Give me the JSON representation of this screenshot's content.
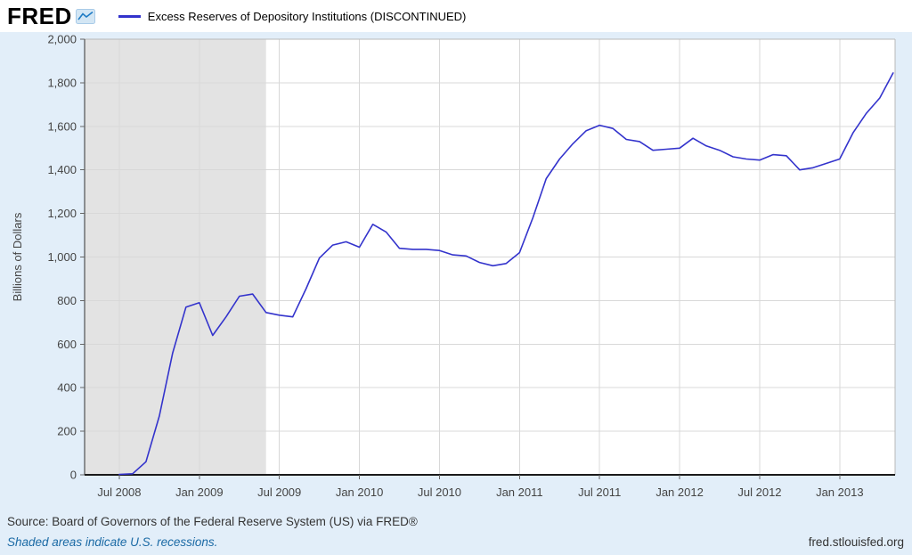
{
  "header": {
    "logo_text": "FRED",
    "series_title": "Excess Reserves of Depository Institutions (DISCONTINUED)"
  },
  "footer": {
    "source": "Source: Board of Governors of the Federal Reserve System (US) via FRED®",
    "recession_note": "Shaded areas indicate U.S. recessions.",
    "site": "fred.stlouisfed.org"
  },
  "colors": {
    "background": "#e2eef9",
    "header_background": "#ffffff",
    "plot_background": "#ffffff",
    "line": "#3333cc",
    "recession_band": "#e3e3e3",
    "gridline": "#d8d8d8",
    "axis_text": "#444444",
    "link": "#1b6aa5"
  },
  "chart_data": {
    "type": "line",
    "title": "Excess Reserves of Depository Institutions (DISCONTINUED)",
    "xlabel": "",
    "ylabel": "Billions of Dollars",
    "ylim": [
      0,
      2000
    ],
    "y_tick_step": 200,
    "grid": true,
    "legend_position": "top-left",
    "x_tick_labels": [
      "Jul 2008",
      "Jan 2009",
      "Jul 2009",
      "Jan 2010",
      "Jul 2010",
      "Jan 2011",
      "Jul 2011",
      "Jan 2012",
      "Jul 2012",
      "Jan 2013"
    ],
    "x_tick_indices": [
      0,
      6,
      12,
      18,
      24,
      30,
      36,
      42,
      48,
      54
    ],
    "months": [
      "2008-07",
      "2008-08",
      "2008-09",
      "2008-10",
      "2008-11",
      "2008-12",
      "2009-01",
      "2009-02",
      "2009-03",
      "2009-04",
      "2009-05",
      "2009-06",
      "2009-07",
      "2009-08",
      "2009-09",
      "2009-10",
      "2009-11",
      "2009-12",
      "2010-01",
      "2010-02",
      "2010-03",
      "2010-04",
      "2010-05",
      "2010-06",
      "2010-07",
      "2010-08",
      "2010-09",
      "2010-10",
      "2010-11",
      "2010-12",
      "2011-01",
      "2011-02",
      "2011-03",
      "2011-04",
      "2011-05",
      "2011-06",
      "2011-07",
      "2011-08",
      "2011-09",
      "2011-10",
      "2011-11",
      "2011-12",
      "2012-01",
      "2012-02",
      "2012-03",
      "2012-04",
      "2012-05",
      "2012-06",
      "2012-07",
      "2012-08",
      "2012-09",
      "2012-10",
      "2012-11",
      "2012-12",
      "2013-01",
      "2013-02",
      "2013-03",
      "2013-04",
      "2013-05"
    ],
    "series": [
      {
        "name": "Excess Reserves of Depository Institutions (DISCONTINUED)",
        "color": "#3333cc",
        "values": [
          2,
          5,
          60,
          270,
          560,
          770,
          790,
          640,
          725,
          820,
          830,
          745,
          733,
          725,
          855,
          995,
          1055,
          1070,
          1045,
          1150,
          1115,
          1040,
          1035,
          1035,
          1030,
          1010,
          1005,
          975,
          960,
          970,
          1020,
          1180,
          1360,
          1450,
          1520,
          1580,
          1605,
          1590,
          1540,
          1530,
          1490,
          1495,
          1500,
          1545,
          1510,
          1490,
          1460,
          1450,
          1445,
          1470,
          1465,
          1400,
          1410,
          1430,
          1450,
          1570,
          1660,
          1730,
          1845
        ]
      }
    ],
    "recessions": [
      {
        "start": "2007-12",
        "end": "2009-06"
      }
    ]
  }
}
